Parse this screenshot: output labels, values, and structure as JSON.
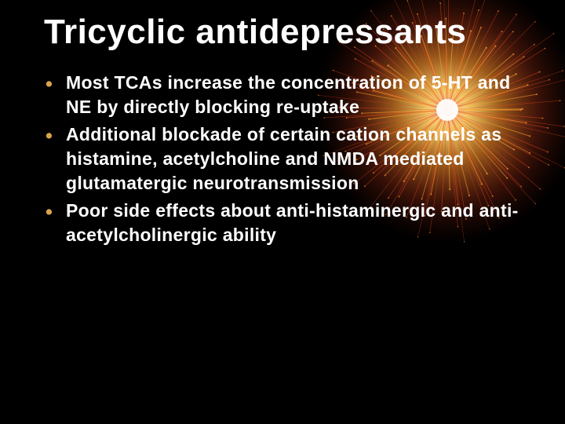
{
  "slide": {
    "title": "Tricyclic antidepressants",
    "title_fontsize": 44,
    "title_color": "#ffffff",
    "bullets": [
      "Most TCAs increase the concentration of 5-HT and NE by directly blocking re-uptake",
      "Additional blockade of certain cation channels as histamine, acetylcholine and NMDA mediated glutamatergic neurotransmission",
      "Poor side effects about anti-histaminergic and anti-acetylcholinergic ability"
    ],
    "bullet_fontsize": 23,
    "bullet_color": "#ffffff",
    "bullet_marker_color": "#d9a44a",
    "background_color": "#000000"
  },
  "firework": {
    "center_color": "#ffffff",
    "inner_color": "#ffe27a",
    "mid_color": "#ff9a2e",
    "outer_color": "#e2451f",
    "dark_color": "#7a1a0a",
    "streak_count": 120,
    "radius": 170
  }
}
